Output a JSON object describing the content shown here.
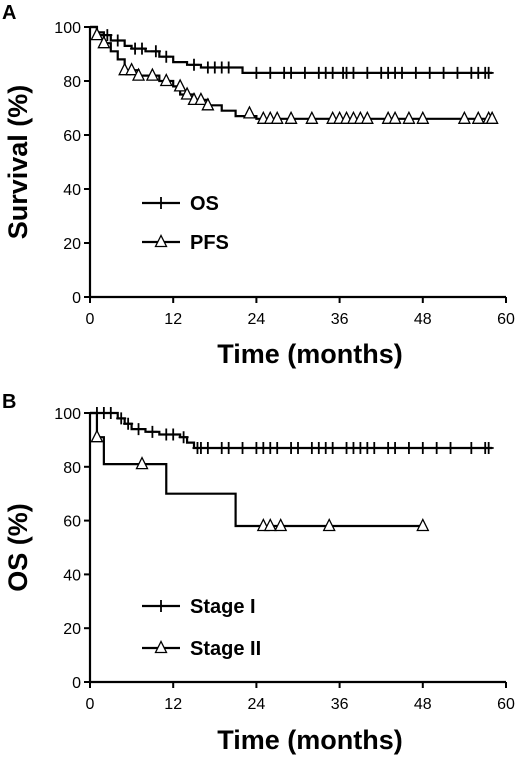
{
  "chart_data": [
    {
      "type": "line",
      "panel_label": "A",
      "xlabel": "Time (months)",
      "ylabel": "Survival (%)",
      "xlim": [
        0,
        60
      ],
      "ylim": [
        0,
        100
      ],
      "xticks": [
        0,
        12,
        24,
        36,
        48,
        60
      ],
      "yticks": [
        0,
        20,
        40,
        60,
        80,
        100
      ],
      "legend_position": "center-left",
      "series": [
        {
          "name": "OS",
          "marker": "plus",
          "steps": [
            [
              0,
              100
            ],
            [
              1,
              98
            ],
            [
              2,
              97
            ],
            [
              3,
              95
            ],
            [
              5,
              93
            ],
            [
              6,
              92
            ],
            [
              8,
              91
            ],
            [
              10,
              89
            ],
            [
              12,
              87
            ],
            [
              14,
              86
            ],
            [
              16,
              85
            ],
            [
              22,
              83
            ],
            [
              58,
              83
            ]
          ],
          "censored": [
            [
              2.5,
              97
            ],
            [
              4,
              95
            ],
            [
              6.5,
              92
            ],
            [
              7.5,
              92
            ],
            [
              9.5,
              91
            ],
            [
              11,
              89
            ],
            [
              15,
              86
            ],
            [
              17,
              85
            ],
            [
              18,
              85
            ],
            [
              19,
              85
            ],
            [
              20,
              85
            ],
            [
              24,
              83
            ],
            [
              26,
              83
            ],
            [
              28,
              83
            ],
            [
              29,
              83
            ],
            [
              31,
              83
            ],
            [
              33,
              83
            ],
            [
              34,
              83
            ],
            [
              35,
              83
            ],
            [
              36.5,
              83
            ],
            [
              37,
              83
            ],
            [
              38,
              83
            ],
            [
              40,
              83
            ],
            [
              42,
              83
            ],
            [
              43,
              83
            ],
            [
              44,
              83
            ],
            [
              45,
              83
            ],
            [
              47,
              83
            ],
            [
              49,
              83
            ],
            [
              51,
              83
            ],
            [
              53,
              83
            ],
            [
              55,
              83
            ],
            [
              56,
              83
            ],
            [
              57,
              83
            ],
            [
              57.5,
              83
            ]
          ]
        },
        {
          "name": "PFS",
          "marker": "triangle",
          "steps": [
            [
              0,
              100
            ],
            [
              1,
              97
            ],
            [
              2,
              94
            ],
            [
              3,
              91
            ],
            [
              4,
              88
            ],
            [
              5,
              84
            ],
            [
              7,
              82
            ],
            [
              10,
              80
            ],
            [
              12,
              78
            ],
            [
              13,
              75
            ],
            [
              15,
              73
            ],
            [
              17,
              71
            ],
            [
              19,
              69
            ],
            [
              21,
              67
            ],
            [
              24,
              66
            ],
            [
              58,
              66
            ]
          ],
          "censored": [
            [
              1,
              97
            ],
            [
              2,
              94
            ],
            [
              5,
              84
            ],
            [
              6,
              84
            ],
            [
              7,
              82
            ],
            [
              9,
              82
            ],
            [
              11,
              80
            ],
            [
              13,
              78
            ],
            [
              14,
              75
            ],
            [
              15,
              73
            ],
            [
              16,
              73
            ],
            [
              17,
              71
            ],
            [
              23,
              68
            ],
            [
              25,
              66
            ],
            [
              26,
              66
            ],
            [
              27,
              66
            ],
            [
              29,
              66
            ],
            [
              32,
              66
            ],
            [
              35,
              66
            ],
            [
              36,
              66
            ],
            [
              37,
              66
            ],
            [
              38,
              66
            ],
            [
              39,
              66
            ],
            [
              40,
              66
            ],
            [
              43,
              66
            ],
            [
              44,
              66
            ],
            [
              46,
              66
            ],
            [
              48,
              66
            ],
            [
              54,
              66
            ],
            [
              56,
              66
            ],
            [
              57.5,
              66
            ],
            [
              58,
              66
            ]
          ]
        }
      ]
    },
    {
      "type": "line",
      "panel_label": "B",
      "xlabel": "Time (months)",
      "ylabel": "OS (%)",
      "xlim": [
        0,
        60
      ],
      "ylim": [
        0,
        100
      ],
      "xticks": [
        0,
        12,
        24,
        36,
        48,
        60
      ],
      "yticks": [
        0,
        20,
        40,
        60,
        80,
        100
      ],
      "legend_position": "bottom-left",
      "series": [
        {
          "name": "Stage I",
          "marker": "plus",
          "steps": [
            [
              0,
              100
            ],
            [
              4,
              98
            ],
            [
              5,
              96
            ],
            [
              6,
              94
            ],
            [
              8,
              93
            ],
            [
              10,
              92
            ],
            [
              13,
              91
            ],
            [
              14,
              89
            ],
            [
              15,
              87
            ],
            [
              58,
              87
            ]
          ],
          "censored": [
            [
              1,
              100
            ],
            [
              2,
              100
            ],
            [
              3,
              100
            ],
            [
              4.5,
              98
            ],
            [
              5.5,
              96
            ],
            [
              7,
              94
            ],
            [
              9,
              93
            ],
            [
              11,
              92
            ],
            [
              12,
              92
            ],
            [
              13.5,
              91
            ],
            [
              15.5,
              87
            ],
            [
              16,
              87
            ],
            [
              17,
              87
            ],
            [
              19,
              87
            ],
            [
              20,
              87
            ],
            [
              22,
              87
            ],
            [
              24,
              87
            ],
            [
              25,
              87
            ],
            [
              26,
              87
            ],
            [
              27,
              87
            ],
            [
              29,
              87
            ],
            [
              30,
              87
            ],
            [
              32,
              87
            ],
            [
              33,
              87
            ],
            [
              34,
              87
            ],
            [
              35,
              87
            ],
            [
              37,
              87
            ],
            [
              38,
              87
            ],
            [
              39,
              87
            ],
            [
              40,
              87
            ],
            [
              41,
              87
            ],
            [
              43,
              87
            ],
            [
              44,
              87
            ],
            [
              46,
              87
            ],
            [
              48,
              87
            ],
            [
              50,
              87
            ],
            [
              52,
              87
            ],
            [
              55,
              87
            ],
            [
              57,
              87
            ],
            [
              57.5,
              87
            ]
          ]
        },
        {
          "name": "Stage II",
          "marker": "triangle",
          "steps": [
            [
              0,
              100
            ],
            [
              1,
              91
            ],
            [
              2,
              81
            ],
            [
              11,
              70
            ],
            [
              21,
              58
            ],
            [
              48,
              58
            ]
          ],
          "censored": [
            [
              1,
              91
            ],
            [
              7.5,
              81
            ],
            [
              25,
              58
            ],
            [
              26,
              58
            ],
            [
              27.5,
              58
            ],
            [
              34.5,
              58
            ],
            [
              48,
              58
            ]
          ]
        }
      ]
    }
  ]
}
